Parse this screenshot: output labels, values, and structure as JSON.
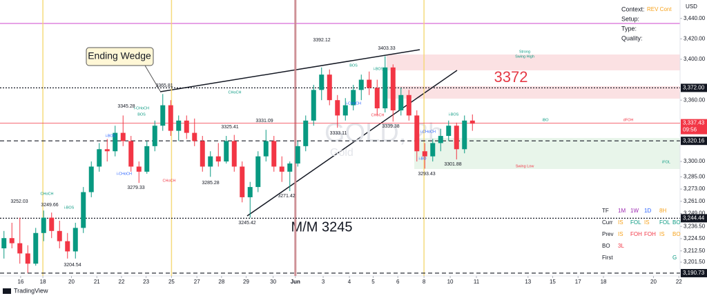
{
  "chart_data": {
    "type": "candlestick",
    "currency": "USD",
    "watermark": "GOLD, 2h",
    "watermark_sub": "Gold",
    "up_color": "#089981",
    "down_color": "#f23645",
    "ylim": [
      3188,
      3458
    ],
    "yticks": [
      {
        "value": 3440,
        "label": "3,440.00"
      },
      {
        "value": 3420,
        "label": "3,420.00"
      },
      {
        "value": 3400,
        "label": "3,400.00"
      },
      {
        "value": 3360,
        "label": "3,360.00"
      },
      {
        "value": 3300,
        "label": "3,300.00"
      },
      {
        "value": 3285,
        "label": "3,285.00"
      },
      {
        "value": 3273,
        "label": "3,273.00"
      },
      {
        "value": 3261,
        "label": "3,261.00"
      },
      {
        "value": 3249,
        "label": "3,249.00"
      },
      {
        "value": 3236.5,
        "label": "3,236.50"
      },
      {
        "value": 3224.5,
        "label": "3,224.50"
      },
      {
        "value": 3212.5,
        "label": "3,212.50"
      },
      {
        "value": 3201.5,
        "label": "3,201.50"
      }
    ],
    "xlim": [
      -0.5,
      85.15
    ],
    "xticks": [
      {
        "value": 2.1,
        "label": "16"
      },
      {
        "value": 4.9,
        "label": "18"
      },
      {
        "value": 8.5,
        "label": "20"
      },
      {
        "value": 11.7,
        "label": "21"
      },
      {
        "value": 14.8,
        "label": "22"
      },
      {
        "value": 17.9,
        "label": "23"
      },
      {
        "value": 21.1,
        "label": "25"
      },
      {
        "value": 24.3,
        "label": "27"
      },
      {
        "value": 27.4,
        "label": "28"
      },
      {
        "value": 30.5,
        "label": "29"
      },
      {
        "value": 33.9,
        "label": "30"
      },
      {
        "value": 36.7,
        "label": "Jun"
      },
      {
        "value": 40.2,
        "label": "3"
      },
      {
        "value": 43.5,
        "label": "4"
      },
      {
        "value": 46.5,
        "label": "5"
      },
      {
        "value": 49.6,
        "label": "6"
      },
      {
        "value": 52.9,
        "label": "8"
      },
      {
        "value": 56.2,
        "label": "10"
      },
      {
        "value": 59.5,
        "label": "11"
      },
      {
        "value": 66.0,
        "label": "13"
      },
      {
        "value": 69.1,
        "label": "15"
      },
      {
        "value": 72.3,
        "label": "17"
      },
      {
        "value": 75.5,
        "label": "18"
      },
      {
        "value": 81.8,
        "label": "20"
      },
      {
        "value": 85.0,
        "label": "22"
      }
    ],
    "open": [
      3215,
      3225,
      3220,
      3210,
      3200,
      3230,
      3245,
      3232,
      3222,
      3212,
      3235,
      3270,
      3295,
      3312,
      3310,
      3328,
      3320,
      3295,
      3290,
      3315,
      3335,
      3355,
      3330,
      3340,
      3328,
      3320,
      3295,
      3305,
      3300,
      3320,
      3295,
      3265,
      3275,
      3305,
      3320,
      3295,
      3290,
      3298,
      3315,
      3340,
      3370,
      3385,
      3360,
      3345,
      3355,
      3370,
      3380,
      3372,
      3352,
      3392,
      3350,
      3365,
      3345,
      3310,
      3305,
      3318,
      3325,
      3335,
      3312,
      3340
    ],
    "high": [
      3232,
      3240,
      3245,
      3218,
      3235,
      3252,
      3250,
      3242,
      3230,
      3240,
      3275,
      3300,
      3318,
      3322,
      3335,
      3345,
      3325,
      3300,
      3320,
      3340,
      3366,
      3360,
      3345,
      3345,
      3342,
      3325,
      3310,
      3318,
      3325,
      3326,
      3300,
      3280,
      3310,
      3331,
      3325,
      3305,
      3300,
      3320,
      3345,
      3375,
      3392,
      3390,
      3365,
      3362,
      3375,
      3385,
      3388,
      3380,
      3403,
      3395,
      3372,
      3370,
      3350,
      3318,
      3322,
      3332,
      3340,
      3338,
      3345,
      3346
    ],
    "low": [
      3205,
      3215,
      3200,
      3191,
      3198,
      3222,
      3225,
      3215,
      3205,
      3205,
      3230,
      3265,
      3290,
      3300,
      3305,
      3315,
      3290,
      3279,
      3288,
      3310,
      3330,
      3325,
      3320,
      3322,
      3315,
      3290,
      3285,
      3295,
      3298,
      3290,
      3260,
      3245,
      3270,
      3300,
      3290,
      3280,
      3271,
      3295,
      3310,
      3335,
      3360,
      3355,
      3333,
      3340,
      3350,
      3360,
      3365,
      3345,
      3348,
      3339,
      3345,
      3340,
      3300,
      3293,
      3300,
      3310,
      3320,
      3302,
      3308,
      3330
    ],
    "close": [
      3225,
      3220,
      3210,
      3200,
      3230,
      3245,
      3232,
      3222,
      3212,
      3235,
      3270,
      3295,
      3312,
      3310,
      3328,
      3320,
      3295,
      3290,
      3315,
      3335,
      3355,
      3330,
      3340,
      3328,
      3320,
      3295,
      3305,
      3300,
      3320,
      3295,
      3265,
      3275,
      3305,
      3320,
      3295,
      3290,
      3298,
      3315,
      3340,
      3370,
      3385,
      3360,
      3345,
      3355,
      3370,
      3380,
      3372,
      3352,
      3392,
      3350,
      3365,
      3345,
      3310,
      3305,
      3318,
      3325,
      3335,
      3312,
      3340,
      3337
    ],
    "levels": [
      {
        "value": 3372,
        "label": "3,372.00",
        "style": "dotted",
        "color": "#131722"
      },
      {
        "value": 3337.43,
        "label": "3,337.43",
        "style": "solid",
        "color": "#f23645",
        "time": "09:56"
      },
      {
        "value": 3320.16,
        "label": "3,320.16",
        "style": "dashed",
        "color": "#131722"
      },
      {
        "value": 3244.44,
        "label": "3,244.44",
        "style": "dotted",
        "color": "#131722"
      },
      {
        "value": 3190.73,
        "label": "3,190.73",
        "style": "dashed",
        "color": "#131722"
      }
    ],
    "price_labels": [
      "3252.03",
      "3249.66",
      "3204.54",
      "3345.28",
      "3279.33",
      "3365.81",
      "3325.41",
      "3285.28",
      "3245.42",
      "3331.09",
      "3271.42",
      "3392.12",
      "3333.11",
      "3403.33",
      "3339.38",
      "3301.88",
      "3293.43"
    ],
    "structure_labels": [
      "CHoCH",
      "i-BOS",
      "i-CHoCH",
      "BOS",
      "i-BOS",
      "i-CHoCH",
      "CHoCH",
      "CHoCH",
      "BOS",
      "i-BOS",
      "i-CHoCH",
      "CHoCH",
      "i-BOS",
      "i-CHoCH",
      "i-BO",
      "iBO",
      "dFOH",
      "iFOL",
      "Swing Low",
      "Strong",
      "Swing High"
    ],
    "annotations": {
      "pattern": "Ending Wedge",
      "zone": "3372",
      "target": "M/M 3245"
    },
    "info_panel": [
      {
        "label": "Context:",
        "value": "REV Cont"
      },
      {
        "label": "Setup:"
      },
      {
        "label": "Type:"
      },
      {
        "label": "Quality:"
      }
    ],
    "info_table": [
      [
        {
          "text": "TF",
          "color": "#131722"
        },
        {
          "text": "1M",
          "color": "#9c27b0"
        },
        {
          "text": "1W",
          "color": "#9c27b0"
        },
        {
          "text": "1D",
          "color": "#2962ff"
        },
        {
          "text": "8H",
          "color": "#f7a21b"
        }
      ],
      [
        {
          "text": "Curr",
          "color": "#131722"
        },
        {
          "text": "IS",
          "color": "#f7a21b"
        },
        {
          "text": "FOL",
          "color": "#089981"
        },
        {
          "text": "IS",
          "color": "#f7a21b"
        },
        {
          "text": "FOL",
          "color": "#089981"
        },
        {
          "text": "BO",
          "color": "#089981"
        }
      ],
      [
        {
          "text": "Prev",
          "color": "#131722"
        },
        {
          "text": "IS",
          "color": "#f7a21b"
        },
        {
          "text": "FOH",
          "color": "#f23645"
        },
        {
          "text": "FOH",
          "color": "#f23645"
        },
        {
          "text": "IS",
          "color": "#f7a21b"
        },
        {
          "text": "BO",
          "color": "#f7a21b"
        }
      ],
      [
        {
          "text": "BO",
          "color": "#131722"
        },
        {
          "text": "3L",
          "color": "#f23645"
        }
      ],
      [
        {
          "text": "First",
          "color": "#131722"
        },
        {
          "text": "G",
          "color": "#089981"
        }
      ]
    ],
    "footer": "TradingView"
  }
}
